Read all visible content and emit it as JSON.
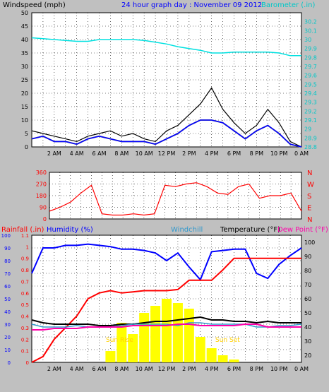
{
  "header": {
    "windspeed_label": "Windspeed (mph)",
    "title": "24 hour graph day : November 09 2012",
    "barometer_label": "Barometer (.in)"
  },
  "footer_labels": {
    "rainfall": "Rainfall (.in)",
    "humidity": "Humidity (%)",
    "windchill": "Windchill",
    "temperature": "Temperature (°F)",
    "dewpoint": "Dew Point (°F)"
  },
  "sun_labels": {
    "rise": "Sun Rise",
    "set": "Sun Set"
  },
  "colors": {
    "background": "#c0c0c0",
    "plot_bg": "#ffffff",
    "windspeed": "#000000",
    "wind_avg": "#0000ff",
    "wind_gray": "#808080",
    "barometer": "#00e0e0",
    "direction": "#ff0000",
    "humidity": "#0000ff",
    "rain": "#ff0000",
    "temperature": "#000000",
    "windchill": "#3399cc",
    "dewpoint": "#ff00aa",
    "solar": "#ffff00"
  },
  "chart_data": [
    {
      "id": "wind",
      "type": "line",
      "x_ticks": [
        "2 AM",
        "4 AM",
        "6 AM",
        "8 AM",
        "10 AM",
        "12 PM",
        "2 PM",
        "4 PM",
        "6 PM",
        "8 PM",
        "10 PM",
        "0 AM"
      ],
      "ylim_left": [
        0,
        50
      ],
      "y_ticks_left": [
        0,
        5,
        10,
        15,
        20,
        25,
        30,
        35,
        40,
        45,
        50
      ],
      "ylim_right": [
        28.8,
        30.3
      ],
      "y_ticks_right": [
        "28.8",
        "28.9",
        "29",
        "29.1",
        "29.2",
        "29.3",
        "29.4",
        "29.5",
        "29.6",
        "29.7",
        "29.8",
        "29.9",
        "30",
        "30.1",
        "30.2"
      ],
      "x": [
        0,
        1,
        2,
        3,
        4,
        5,
        6,
        7,
        8,
        9,
        10,
        11,
        12,
        13,
        14,
        15,
        16,
        17,
        18,
        19,
        20,
        21,
        22,
        23,
        24
      ],
      "series": [
        {
          "name": "Windspeed (mph)",
          "values": [
            6,
            5,
            4,
            3,
            2,
            4,
            5,
            6,
            4,
            5,
            3,
            2,
            6,
            8,
            12,
            16,
            22,
            14,
            9,
            5,
            8,
            14,
            9,
            2,
            0
          ]
        },
        {
          "name": "Wind average",
          "values": [
            3,
            4,
            2,
            2,
            1,
            3,
            4,
            3,
            2,
            2,
            2,
            1,
            3,
            5,
            8,
            10,
            10,
            9,
            6,
            3,
            6,
            8,
            5,
            1,
            0
          ]
        },
        {
          "name": "Barometer (.in)",
          "values": [
            30.02,
            30.01,
            30.0,
            29.99,
            29.98,
            29.98,
            30.0,
            30.0,
            30.0,
            30.0,
            29.99,
            29.97,
            29.95,
            29.92,
            29.9,
            29.88,
            29.85,
            29.85,
            29.86,
            29.86,
            29.86,
            29.86,
            29.85,
            29.82,
            29.82
          ]
        }
      ]
    },
    {
      "id": "direction",
      "type": "line",
      "y_ticks_left": [
        0,
        90,
        180,
        270,
        360
      ],
      "ylim_left": [
        0,
        360
      ],
      "y_labels_right": [
        "N",
        "W",
        "S",
        "E",
        "N"
      ],
      "x": [
        0,
        1,
        2,
        3,
        4,
        5,
        6,
        7,
        8,
        9,
        10,
        11,
        12,
        13,
        14,
        15,
        16,
        17,
        18,
        19,
        20,
        21,
        22,
        23,
        24
      ],
      "series": [
        {
          "name": "Wind direction",
          "values": [
            60,
            90,
            130,
            200,
            260,
            40,
            30,
            30,
            40,
            30,
            40,
            260,
            250,
            270,
            280,
            250,
            200,
            190,
            250,
            270,
            160,
            180,
            180,
            200,
            60
          ]
        }
      ]
    },
    {
      "id": "temp",
      "type": "line",
      "y_ticks_left": [
        0,
        0.1,
        0.2,
        0.3,
        0.4,
        0.5,
        0.6,
        0.7,
        0.8,
        0.9,
        1,
        1.1
      ],
      "ylim_rain": [
        0,
        1.1
      ],
      "humidity_ticks": [
        0,
        10,
        20,
        30,
        40,
        50,
        60,
        70,
        80,
        90,
        100
      ],
      "ylim_hum": [
        0,
        100
      ],
      "y_ticks_right": [
        20,
        30,
        40,
        50,
        60,
        70,
        80,
        90,
        100
      ],
      "ylim_temp": [
        15,
        105
      ],
      "x": [
        0,
        1,
        2,
        3,
        4,
        5,
        6,
        7,
        8,
        9,
        10,
        11,
        12,
        13,
        14,
        15,
        16,
        17,
        18,
        19,
        20,
        21,
        22,
        23,
        24
      ],
      "series": [
        {
          "name": "Humidity (%)",
          "values": [
            70,
            90,
            90,
            92,
            92,
            93,
            92,
            91,
            89,
            89,
            88,
            86,
            80,
            86,
            75,
            65,
            87,
            88,
            89,
            89,
            70,
            66,
            77,
            84,
            90
          ]
        },
        {
          "name": "Rainfall (.in)",
          "values": [
            0,
            0.05,
            0.2,
            0.3,
            0.4,
            0.55,
            0.6,
            0.62,
            0.6,
            0.61,
            0.62,
            0.62,
            0.62,
            0.63,
            0.71,
            0.71,
            0.71,
            0.8,
            0.9,
            0.9,
            0.9,
            0.9,
            0.9,
            0.9,
            0.9
          ]
        },
        {
          "name": "Temperature (°F)",
          "values": [
            45,
            43,
            42,
            42,
            42,
            42,
            41,
            41,
            42,
            42,
            43,
            44,
            44,
            45,
            46,
            47,
            45,
            45,
            44,
            44,
            43,
            44,
            43,
            43,
            43
          ]
        },
        {
          "name": "Windchill",
          "values": [
            42,
            40,
            40,
            40,
            41,
            40,
            40,
            40,
            41,
            42,
            42,
            42,
            42,
            41,
            43,
            43,
            42,
            42,
            42,
            42,
            40,
            40,
            41,
            41,
            42
          ]
        },
        {
          "name": "Dew Point (°F)",
          "values": [
            38,
            38,
            39,
            39,
            39,
            40,
            40,
            40,
            40,
            41,
            41,
            41,
            41,
            42,
            42,
            41,
            41,
            41,
            41,
            42,
            42,
            40,
            40,
            40,
            40
          ]
        },
        {
          "name": "Solar",
          "values": [
            0,
            0,
            0,
            0,
            0,
            0,
            0,
            8,
            28,
            20,
            35,
            40,
            45,
            42,
            38,
            18,
            10,
            5,
            2,
            0,
            0,
            0,
            0,
            0,
            0
          ]
        }
      ]
    }
  ]
}
